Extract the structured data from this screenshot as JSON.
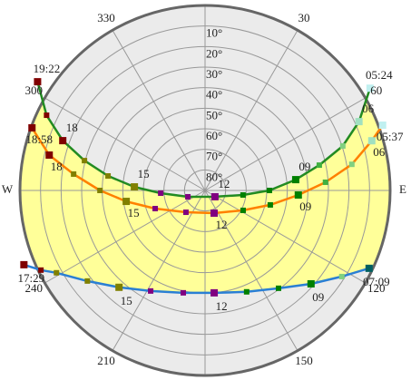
{
  "chart_data": {
    "type": "polar",
    "ylim": [
      0,
      90
    ],
    "yticks": [
      {
        "value": 10,
        "label": "10°"
      },
      {
        "value": 20,
        "label": "20°"
      },
      {
        "value": 30,
        "label": "30°"
      },
      {
        "value": 40,
        "label": "40°"
      },
      {
        "value": 50,
        "label": "50°"
      },
      {
        "value": 60,
        "label": "60°"
      },
      {
        "value": 70,
        "label": "70°"
      },
      {
        "value": 80,
        "label": "80°"
      }
    ],
    "xticks": [
      30,
      60,
      {
        "value": 90,
        "label": "E"
      },
      120,
      150,
      210,
      240,
      {
        "value": 270,
        "label": "W"
      },
      300,
      330
    ],
    "grid": true,
    "fill_color": "#ffff99",
    "series": [
      {
        "color": "#228b22",
        "azimuth": [
          303,
          295.4,
          289.3,
          283.9,
          278.5,
          272.9,
          266.5,
          249.8,
          122.5,
          96.8,
          90,
          83.2,
          77.5,
          72.1,
          65.9,
          58.2
        ],
        "altitude": [
          -7.1,
          4.7,
          16.7,
          29.6,
          42.3,
          55.6,
          68.4,
          81.1,
          84.3,
          71.4,
          58.7,
          45.6,
          33.1,
          19.6,
          8.0,
          -4.4
        ],
        "marker_colors": [
          "#800000",
          "#800000",
          "#800000",
          "#808000",
          "#808000",
          "#808000",
          "#800080",
          "#800080",
          "#800080",
          "#008000",
          "#008000",
          "#008000",
          "#40b040",
          "#80d080",
          "#a0e0c0",
          "#c0f0f0"
        ],
        "point_labels": [
          "19:22",
          null,
          "18",
          null,
          null,
          "15",
          null,
          null,
          "12",
          null,
          null,
          "09",
          null,
          null,
          "06",
          "05:24"
        ]
      },
      {
        "color": "#ff8000",
        "azimuth": [
          289.9,
          282.8,
          277.1,
          270,
          262.1,
          250,
          221.2,
          158.2,
          117.6,
          102.5,
          92.8,
          86.1,
          79.9,
          73.4,
          69.8
        ],
        "altitude": [
          0.5,
          12.3,
          25.6,
          38.9,
          51.3,
          64.2,
          75.9,
          78.1,
          69.1,
          57.5,
          44.6,
          31.3,
          17.5,
          5.4,
          -2.0
        ],
        "marker_colors": [
          "#800000",
          "#800000",
          "#808000",
          "#808000",
          "#808000",
          "#800080",
          "#800080",
          "#800080",
          "#008000",
          "#008000",
          "#008000",
          "#40b040",
          "#80d080",
          "#a0e0c0",
          "#c0f0f0"
        ],
        "point_labels": [
          "18:58",
          "18",
          null,
          null,
          "15",
          null,
          null,
          "12",
          null,
          null,
          "09",
          null,
          null,
          "06",
          "05:37"
        ]
      },
      {
        "color": "#2a7fd4",
        "azimuth": [
          247.7,
          244.1,
          241,
          232.4,
          221.6,
          208.4,
          192,
          174.9,
          157.7,
          143.1,
          131.4,
          122.2,
          115.4
        ],
        "altitude": [
          -5.2,
          1.3,
          7.4,
          17.8,
          27.0,
          34.4,
          39.1,
          40.0,
          36.7,
          30.5,
          21.3,
          11.4,
          1.7
        ],
        "marker_colors": [
          "#800000",
          "#800000",
          "#808000",
          "#808000",
          "#808000",
          "#800080",
          "#800080",
          "#800080",
          "#008000",
          "#008000",
          "#008000",
          "#80d080",
          "#006060"
        ],
        "point_labels": [
          "17:29",
          null,
          null,
          null,
          "15",
          null,
          null,
          "12",
          null,
          null,
          "09",
          null,
          "07:09"
        ]
      }
    ]
  }
}
